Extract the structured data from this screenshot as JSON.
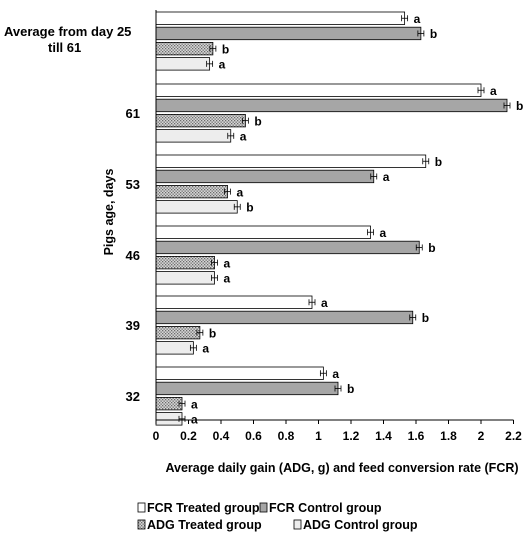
{
  "chart_data": {
    "type": "bar",
    "orientation": "horizontal",
    "categories": [
      "Average from day 25 till 61",
      "61",
      "53",
      "46",
      "39",
      "32"
    ],
    "category_label_lines": [
      [
        "Average from day 25",
        "till 61"
      ],
      [
        "61"
      ],
      [
        "53"
      ],
      [
        "46"
      ],
      [
        "39"
      ],
      [
        "32"
      ]
    ],
    "series": [
      {
        "name": "FCR Treated group",
        "pattern": "white",
        "values": [
          1.53,
          2.0,
          1.66,
          1.32,
          0.96,
          1.03
        ],
        "labels": [
          "a",
          "a",
          "b",
          "a",
          "a",
          "a"
        ]
      },
      {
        "name": "FCR Control group",
        "pattern": "dark",
        "values": [
          1.63,
          2.16,
          1.34,
          1.62,
          1.58,
          1.12
        ],
        "labels": [
          "b",
          "b",
          "a",
          "b",
          "b",
          "b"
        ]
      },
      {
        "name": "ADG Treated group",
        "pattern": "dotted",
        "values": [
          0.35,
          0.55,
          0.44,
          0.36,
          0.27,
          0.16
        ],
        "labels": [
          "b",
          "b",
          "a",
          "a",
          "b",
          "a"
        ]
      },
      {
        "name": "ADG Control group",
        "pattern": "light",
        "values": [
          0.33,
          0.46,
          0.5,
          0.36,
          0.23,
          0.16
        ],
        "labels": [
          "a",
          "a",
          "b",
          "a",
          "a",
          "a"
        ]
      }
    ],
    "xlabel": "Average daily gain (ADG, g) and feed conversion  rate (FCR)",
    "ylabel": "Pigs age, days",
    "xlim": [
      0,
      2.2
    ],
    "xticks": [
      "0",
      "0.2",
      "0.4",
      "0.6",
      "0.8",
      "1",
      "1.2",
      "1.4",
      "1.6",
      "1.8",
      "2",
      "2.2"
    ],
    "grid": false,
    "error_bars": true,
    "legend_position": "bottom"
  },
  "colors": {
    "white": "#ffffff",
    "dark": "#a6a6a6",
    "dotted": "#c8c8c8",
    "light": "#ededed",
    "outline": "#000000"
  }
}
